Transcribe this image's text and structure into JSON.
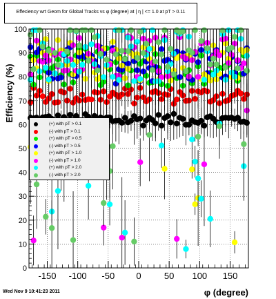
{
  "chart_data": {
    "type": "scatter",
    "title": "Effeciency wrt Geom for Global Tracks vs φ (degree) at |  η | <= 1.0 at pT > 0.11",
    "xlabel": "φ (degree)",
    "ylabel": "Efficiency (%)",
    "xlim": [
      -180,
      180
    ],
    "ylim": [
      0,
      100
    ],
    "x_ticks": [
      "-150",
      "-100",
      "-50",
      "0",
      "50",
      "100",
      "150"
    ],
    "y_ticks": [
      "0",
      "10",
      "20",
      "30",
      "40",
      "50",
      "60",
      "70",
      "80",
      "90",
      "100"
    ],
    "grid": true,
    "legend_position": "middle-left",
    "series": [
      {
        "name": "(+) with pT > 0.1",
        "color": "#000000",
        "base": 62,
        "spread": 2.5
      },
      {
        "name": "(-) with pT > 0.1",
        "color": "#ff0000",
        "base": 72,
        "spread": 3.5
      },
      {
        "name": "(+) with pT > 0.5",
        "color": "#00ee00",
        "base": 84,
        "spread": 8
      },
      {
        "name": "(-) with pT > 0.5",
        "color": "#0000ff",
        "base": 85,
        "spread": 8
      },
      {
        "name": "(+) with pT > 1.0",
        "color": "#ffff00",
        "base": 87,
        "spread": 9
      },
      {
        "name": "(-) with pT > 1.0",
        "color": "#ff00ff",
        "base": 88,
        "spread": 9
      },
      {
        "name": "(+) with pT > 2.0",
        "color": "#00ffff",
        "base": 90,
        "spread": 12
      },
      {
        "name": "(-) with pT > 2.0",
        "color": "#66cc66",
        "base": 93,
        "spread": 12
      }
    ]
  },
  "timestamp": "Wed Nov  9 10:41:23 2011"
}
